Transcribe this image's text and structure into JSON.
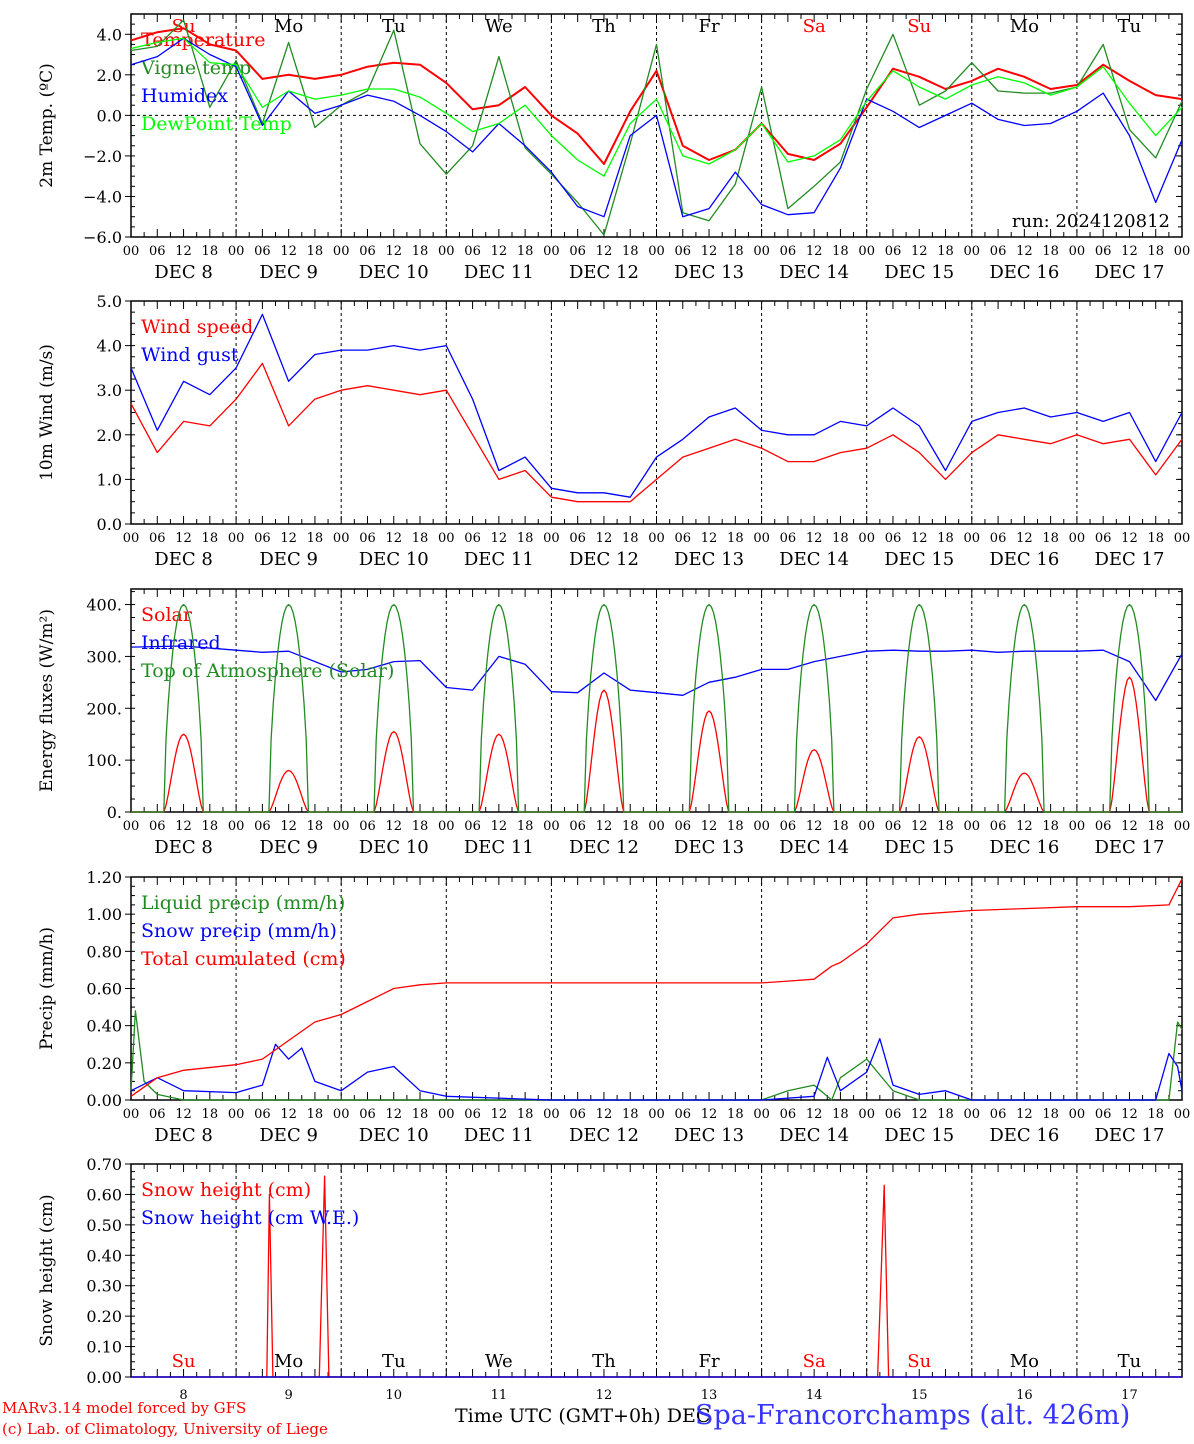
{
  "location": "Spa-Francorchamps (alt. 426m)",
  "credits": [
    "MARv3.14 model forced by GFS",
    "(c) Lab. of Climatology, University of Liege"
  ],
  "x_axis_title": "Time UTC (GMT+0h) DEC",
  "run_label": "run: 2024120812",
  "days": [
    {
      "date": "DEC  8",
      "dow": "Su",
      "num": "8",
      "weekend": true
    },
    {
      "date": "DEC  9",
      "dow": "Mo",
      "num": "9",
      "weekend": false
    },
    {
      "date": "DEC 10",
      "dow": "Tu",
      "num": "10",
      "weekend": false
    },
    {
      "date": "DEC 11",
      "dow": "We",
      "num": "11",
      "weekend": false
    },
    {
      "date": "DEC 12",
      "dow": "Th",
      "num": "12",
      "weekend": false
    },
    {
      "date": "DEC 13",
      "dow": "Fr",
      "num": "13",
      "weekend": false
    },
    {
      "date": "DEC 14",
      "dow": "Sa",
      "num": "14",
      "weekend": true
    },
    {
      "date": "DEC 15",
      "dow": "Su",
      "num": "15",
      "weekend": true
    },
    {
      "date": "DEC 16",
      "dow": "Mo",
      "num": "16",
      "weekend": false
    },
    {
      "date": "DEC 17",
      "dow": "Tu",
      "num": "17",
      "weekend": false
    }
  ],
  "hour_ticks": [
    "00",
    "06",
    "12",
    "18"
  ],
  "colors": {
    "red": "#ff0000",
    "green": "#228b22",
    "blue": "#0000ff",
    "lightgreen": "#00ff00",
    "weekend": "#ff0000",
    "weekday": "#000000"
  },
  "chart_data": [
    {
      "type": "line",
      "ylabel": "2m Temp. (ºC)",
      "ylim": [
        -6,
        5
      ],
      "yticks": [
        -6,
        -4,
        -2,
        0,
        2,
        4
      ],
      "yticklabels": [
        "−6.0",
        "−4.0",
        "−2.0",
        "0.0",
        "2.0",
        "4.0"
      ],
      "zero_line": true,
      "legend_position": "top-left",
      "x_unit": "hours since DEC 8 00 UTC",
      "series": [
        {
          "name": "Temperature",
          "color": "red",
          "x": [
            0,
            6,
            12,
            18,
            24,
            30,
            36,
            42,
            48,
            54,
            60,
            66,
            72,
            78,
            84,
            90,
            96,
            102,
            108,
            114,
            120,
            126,
            132,
            138,
            144,
            150,
            156,
            162,
            168,
            174,
            180,
            186,
            192,
            198,
            204,
            210,
            216,
            222,
            228,
            234,
            240
          ],
          "y": [
            3.7,
            4.1,
            4.3,
            3.5,
            3.2,
            1.8,
            2.0,
            1.8,
            2.0,
            2.4,
            2.6,
            2.5,
            1.6,
            0.3,
            0.5,
            1.4,
            0.0,
            -0.9,
            -2.4,
            0.2,
            2.2,
            -1.5,
            -2.2,
            -1.7,
            -0.4,
            -1.9,
            -2.2,
            -1.4,
            0.4,
            2.3,
            1.9,
            1.3,
            1.7,
            2.3,
            1.9,
            1.3,
            1.5,
            2.5,
            1.7,
            1.0,
            0.8
          ]
        },
        {
          "name": "Vigne temp",
          "color": "green",
          "x": [
            0,
            6,
            12,
            18,
            24,
            30,
            36,
            42,
            48,
            54,
            60,
            66,
            72,
            78,
            84,
            90,
            96,
            102,
            108,
            114,
            120,
            126,
            132,
            138,
            144,
            150,
            156,
            162,
            168,
            174,
            180,
            186,
            192,
            198,
            204,
            210,
            216,
            222,
            228,
            234,
            240
          ],
          "y": [
            3.2,
            3.4,
            4.7,
            0.4,
            2.7,
            -0.4,
            3.6,
            -0.6,
            0.5,
            1.2,
            4.2,
            -1.4,
            -2.9,
            -1.5,
            2.9,
            -1.6,
            -2.9,
            -4.3,
            -5.9,
            -1.4,
            3.5,
            -4.8,
            -5.2,
            -3.4,
            1.4,
            -4.6,
            -3.5,
            -2.3,
            1.3,
            4.0,
            0.5,
            1.2,
            2.6,
            1.2,
            1.1,
            1.1,
            1.4,
            3.5,
            -0.7,
            -2.1,
            0.7
          ]
        },
        {
          "name": "Humidex",
          "color": "blue",
          "x": [
            0,
            6,
            12,
            18,
            24,
            30,
            36,
            42,
            48,
            54,
            60,
            66,
            72,
            78,
            84,
            90,
            96,
            102,
            108,
            114,
            120,
            126,
            132,
            138,
            144,
            150,
            156,
            162,
            168,
            174,
            180,
            186,
            192,
            198,
            204,
            210,
            216,
            222,
            228,
            234,
            240
          ],
          "y": [
            2.5,
            2.9,
            3.8,
            3.0,
            2.4,
            -0.5,
            1.2,
            0.1,
            0.5,
            1.0,
            0.7,
            0.0,
            -0.8,
            -1.8,
            -0.4,
            -1.5,
            -2.8,
            -4.5,
            -5.0,
            -1.0,
            0.0,
            -5.0,
            -4.6,
            -2.8,
            -4.4,
            -4.9,
            -4.8,
            -2.6,
            0.8,
            0.2,
            -0.6,
            0.0,
            0.6,
            -0.2,
            -0.5,
            -0.4,
            0.2,
            1.1,
            -1.0,
            -4.3,
            -1.2
          ]
        },
        {
          "name": "DewPoint Temp",
          "color": "lightgreen",
          "x": [
            0,
            6,
            12,
            18,
            24,
            30,
            36,
            42,
            48,
            54,
            60,
            66,
            72,
            78,
            84,
            90,
            96,
            102,
            108,
            114,
            120,
            126,
            132,
            138,
            144,
            150,
            156,
            162,
            168,
            174,
            180,
            186,
            192,
            198,
            204,
            210,
            216,
            222,
            228,
            234,
            240
          ],
          "y": [
            3.3,
            3.6,
            3.8,
            2.6,
            2.5,
            0.4,
            1.2,
            0.8,
            1.0,
            1.3,
            1.3,
            0.9,
            0.1,
            -0.8,
            -0.4,
            0.5,
            -1.0,
            -2.2,
            -3.0,
            -0.4,
            0.8,
            -2.0,
            -2.4,
            -1.7,
            -0.4,
            -2.3,
            -2.0,
            -1.2,
            0.7,
            2.2,
            1.4,
            0.8,
            1.5,
            1.9,
            1.6,
            1.0,
            1.4,
            2.4,
            0.6,
            -1.0,
            0.4
          ]
        }
      ]
    },
    {
      "type": "line",
      "ylabel": "10m Wind (m/s)",
      "ylim": [
        0,
        5
      ],
      "yticks": [
        0,
        1,
        2,
        3,
        4,
        5
      ],
      "yticklabels": [
        "0.0",
        "1.0",
        "2.0",
        "3.0",
        "4.0",
        "5.0"
      ],
      "legend_position": "top-left",
      "x_unit": "hours since DEC 8 00 UTC",
      "series": [
        {
          "name": "Wind speed",
          "color": "red",
          "x": [
            0,
            6,
            12,
            18,
            24,
            30,
            36,
            42,
            48,
            54,
            60,
            66,
            72,
            78,
            84,
            90,
            96,
            102,
            108,
            114,
            120,
            126,
            132,
            138,
            144,
            150,
            156,
            162,
            168,
            174,
            180,
            186,
            192,
            198,
            204,
            210,
            216,
            222,
            228,
            234,
            240
          ],
          "y": [
            2.7,
            1.6,
            2.3,
            2.2,
            2.8,
            3.6,
            2.2,
            2.8,
            3.0,
            3.1,
            3.0,
            2.9,
            3.0,
            2.0,
            1.0,
            1.2,
            0.6,
            0.5,
            0.5,
            0.5,
            1.0,
            1.5,
            1.7,
            1.9,
            1.7,
            1.4,
            1.4,
            1.6,
            1.7,
            2.0,
            1.6,
            1.0,
            1.6,
            2.0,
            1.9,
            1.8,
            2.0,
            1.8,
            1.9,
            1.1,
            1.9
          ]
        },
        {
          "name": "Wind gust",
          "color": "blue",
          "x": [
            0,
            6,
            12,
            18,
            24,
            30,
            36,
            42,
            48,
            54,
            60,
            66,
            72,
            78,
            84,
            90,
            96,
            102,
            108,
            114,
            120,
            126,
            132,
            138,
            144,
            150,
            156,
            162,
            168,
            174,
            180,
            186,
            192,
            198,
            204,
            210,
            216,
            222,
            228,
            234,
            240
          ],
          "y": [
            3.5,
            2.1,
            3.2,
            2.9,
            3.5,
            4.7,
            3.2,
            3.8,
            3.9,
            3.9,
            4.0,
            3.9,
            4.0,
            2.8,
            1.2,
            1.5,
            0.8,
            0.7,
            0.7,
            0.6,
            1.5,
            1.9,
            2.4,
            2.6,
            2.1,
            2.0,
            2.0,
            2.3,
            2.2,
            2.6,
            2.2,
            1.2,
            2.3,
            2.5,
            2.6,
            2.4,
            2.5,
            2.3,
            2.5,
            1.4,
            2.5
          ]
        }
      ]
    },
    {
      "type": "line",
      "ylabel": "Energy fluxes (W/m²)",
      "ylim": [
        0,
        430
      ],
      "yticks": [
        0,
        100,
        200,
        300,
        400
      ],
      "yticklabels": [
        "0.",
        "100.",
        "200.",
        "300.",
        "400."
      ],
      "legend_position": "top-left",
      "x_unit": "hours since DEC 8 00 UTC",
      "series": [
        {
          "name": "Solar",
          "color": "red",
          "daily_peak": [
            150,
            80,
            155,
            150,
            235,
            195,
            120,
            145,
            75,
            260
          ]
        },
        {
          "name": "Infrared",
          "color": "blue",
          "x": [
            0,
            12,
            24,
            30,
            36,
            48,
            54,
            60,
            66,
            72,
            78,
            84,
            90,
            96,
            102,
            108,
            114,
            120,
            126,
            132,
            138,
            144,
            150,
            156,
            162,
            168,
            174,
            180,
            186,
            192,
            198,
            204,
            210,
            216,
            222,
            228,
            234,
            240
          ],
          "y": [
            318,
            320,
            312,
            308,
            310,
            270,
            275,
            290,
            292,
            240,
            235,
            300,
            285,
            232,
            230,
            268,
            235,
            230,
            225,
            250,
            260,
            275,
            275,
            290,
            300,
            310,
            312,
            310,
            310,
            312,
            308,
            310,
            310,
            310,
            312,
            290,
            215,
            305
          ]
        },
        {
          "name": "Top of Atmosphere (Solar)",
          "color": "green",
          "daily_peak": 400
        }
      ]
    },
    {
      "type": "line",
      "ylabel": "Precip (mm/h)",
      "ylim": [
        0,
        1.2
      ],
      "yticks": [
        0,
        0.2,
        0.4,
        0.6,
        0.8,
        1.0,
        1.2
      ],
      "yticklabels": [
        "0.00",
        "0.20",
        "0.40",
        "0.60",
        "0.80",
        "1.00",
        "1.20"
      ],
      "legend_position": "top-left",
      "x_unit": "hours since DEC 8 00 UTC",
      "series": [
        {
          "name": "Liquid precip (mm/h)",
          "color": "green",
          "x": [
            0,
            1,
            3,
            6,
            12,
            24,
            48,
            144,
            150,
            156,
            160,
            162,
            168,
            174,
            180,
            192,
            228,
            237,
            239,
            240
          ],
          "y": [
            0.05,
            0.48,
            0.1,
            0.03,
            0.0,
            0.0,
            0.0,
            0.0,
            0.05,
            0.08,
            0.0,
            0.12,
            0.22,
            0.05,
            0.0,
            0.0,
            0.0,
            0.0,
            0.42,
            0.38
          ]
        },
        {
          "name": "Snow precip (mm/h)",
          "color": "blue",
          "x": [
            0,
            6,
            12,
            24,
            30,
            33,
            36,
            39,
            42,
            48,
            54,
            60,
            66,
            72,
            96,
            144,
            156,
            159,
            162,
            168,
            171,
            174,
            180,
            186,
            192,
            234,
            237,
            239,
            240
          ],
          "y": [
            0.05,
            0.12,
            0.05,
            0.04,
            0.08,
            0.3,
            0.22,
            0.28,
            0.1,
            0.05,
            0.15,
            0.18,
            0.05,
            0.02,
            0.0,
            0.0,
            0.02,
            0.23,
            0.05,
            0.15,
            0.33,
            0.08,
            0.03,
            0.05,
            0.0,
            0.0,
            0.25,
            0.18,
            0.05
          ]
        },
        {
          "name": "Total cumulated (cm)",
          "color": "red",
          "x": [
            0,
            6,
            12,
            24,
            30,
            36,
            42,
            48,
            54,
            60,
            66,
            72,
            96,
            120,
            144,
            150,
            156,
            160,
            162,
            168,
            174,
            180,
            192,
            204,
            216,
            228,
            237,
            240
          ],
          "y": [
            0.02,
            0.12,
            0.16,
            0.19,
            0.22,
            0.32,
            0.42,
            0.46,
            0.53,
            0.6,
            0.62,
            0.63,
            0.63,
            0.63,
            0.63,
            0.64,
            0.65,
            0.72,
            0.74,
            0.84,
            0.98,
            1.0,
            1.02,
            1.03,
            1.04,
            1.04,
            1.05,
            1.19
          ]
        }
      ]
    },
    {
      "type": "line",
      "ylabel": "Snow height (cm)",
      "ylim": [
        0,
        0.7
      ],
      "yticks": [
        0,
        0.1,
        0.2,
        0.3,
        0.4,
        0.5,
        0.6,
        0.7
      ],
      "yticklabels": [
        "0.00",
        "0.10",
        "0.20",
        "0.30",
        "0.40",
        "0.50",
        "0.60",
        "0.70"
      ],
      "legend_position": "top-left",
      "x_unit": "hours since DEC 8 00 UTC",
      "series": [
        {
          "name": "Snow height (cm)",
          "color": "red",
          "x": [
            0,
            31,
            31.6,
            32.4,
            43,
            44.2,
            45.2,
            170.5,
            172,
            173,
            240
          ],
          "y": [
            0,
            0,
            0.6,
            0,
            0,
            0.66,
            0,
            0,
            0.63,
            0,
            0
          ]
        },
        {
          "name": "Snow height (cm W.E.)",
          "color": "blue",
          "x": [
            0,
            240
          ],
          "y": [
            0,
            0
          ]
        }
      ]
    }
  ]
}
